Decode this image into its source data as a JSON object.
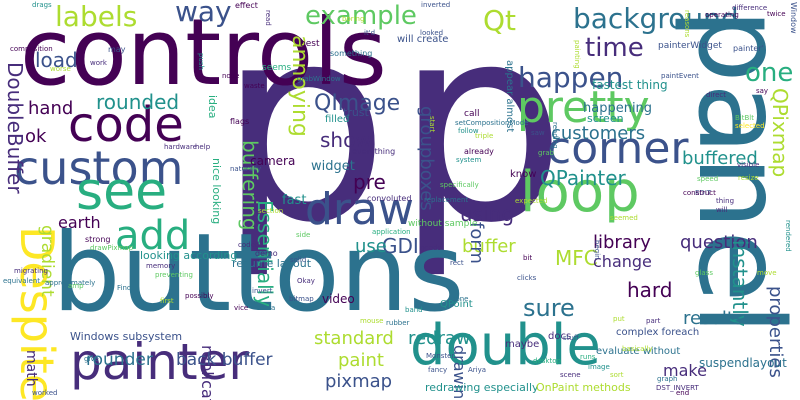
{
  "palette": {
    "c1": "#440154",
    "c2": "#472d7b",
    "c3": "#3b528b",
    "c4": "#2c728e",
    "c5": "#21918c",
    "c6": "#28ae80",
    "c7": "#5ec962",
    "c8": "#addc30",
    "c9": "#fde725"
  },
  "words": [
    {
      "text": "p",
      "color": "c2"
    },
    {
      "text": "p",
      "color": "c2"
    },
    {
      "text": "buttons",
      "color": "c4"
    },
    {
      "text": "controls",
      "color": "c1"
    },
    {
      "text": "panel",
      "color": "c4"
    },
    {
      "text": "painter",
      "color": "c2"
    },
    {
      "text": "double",
      "color": "c5"
    },
    {
      "text": "custom",
      "color": "c3"
    },
    {
      "text": "see",
      "color": "c6"
    },
    {
      "text": "code",
      "color": "c1"
    },
    {
      "text": "pretty",
      "color": "c7"
    },
    {
      "text": "corner",
      "color": "c3"
    },
    {
      "text": "loop",
      "color": "c7"
    },
    {
      "text": "draw",
      "color": "c3"
    },
    {
      "text": "add",
      "color": "c6"
    },
    {
      "text": "Despite",
      "color": "c9"
    },
    {
      "text": "background",
      "color": "c4"
    },
    {
      "text": "labels",
      "color": "c8"
    },
    {
      "text": "way",
      "color": "c3"
    },
    {
      "text": "example",
      "color": "c7"
    },
    {
      "text": "Qt",
      "color": "c8"
    },
    {
      "text": "time",
      "color": "c2"
    },
    {
      "text": "load",
      "color": "c3"
    },
    {
      "text": "happen",
      "color": "c3"
    },
    {
      "text": "one",
      "color": "c6"
    },
    {
      "text": "QImage",
      "color": "c3"
    },
    {
      "text": "annoying",
      "color": "c8"
    },
    {
      "text": "rounded",
      "color": "c5"
    },
    {
      "text": "DoubleBuffer",
      "color": "c2"
    },
    {
      "text": "hand",
      "color": "c1"
    },
    {
      "text": "ok",
      "color": "c1"
    },
    {
      "text": "pre",
      "color": "c1"
    },
    {
      "text": "show",
      "color": "c2"
    },
    {
      "text": "customers",
      "color": "c4"
    },
    {
      "text": "QPainter",
      "color": "c5"
    },
    {
      "text": "QPixmap",
      "color": "c8"
    },
    {
      "text": "buffered",
      "color": "c5"
    },
    {
      "text": "using",
      "color": "c2"
    },
    {
      "text": "buffering",
      "color": "c7"
    },
    {
      "text": "groupboxes",
      "color": "c3"
    },
    {
      "text": "earth",
      "color": "c1"
    },
    {
      "text": "gradient",
      "color": "c8"
    },
    {
      "text": "GDI",
      "color": "c3"
    },
    {
      "text": "use",
      "color": "c5"
    },
    {
      "text": "buffer",
      "color": "c8"
    },
    {
      "text": "library",
      "color": "c1"
    },
    {
      "text": "question",
      "color": "c2"
    },
    {
      "text": "form",
      "color": "c3"
    },
    {
      "text": "instantly",
      "color": "c5"
    },
    {
      "text": "MFC",
      "color": "c8"
    },
    {
      "text": "change",
      "color": "c2"
    },
    {
      "text": "hard",
      "color": "c1"
    },
    {
      "text": "sure",
      "color": "c4"
    },
    {
      "text": "results",
      "color": "c4"
    },
    {
      "text": "properties",
      "color": "c3"
    },
    {
      "text": "Essentially",
      "color": "c6"
    },
    {
      "text": "replicate",
      "color": "c2"
    },
    {
      "text": "standard",
      "color": "c8"
    },
    {
      "text": "redraw",
      "color": "c5"
    },
    {
      "text": "paint",
      "color": "c8"
    },
    {
      "text": "drawing",
      "color": "c3"
    },
    {
      "text": "math",
      "color": "c2"
    },
    {
      "text": "pixmap",
      "color": "c3"
    },
    {
      "text": "rounder",
      "color": "c4"
    },
    {
      "text": "back buffer",
      "color": "c3"
    },
    {
      "text": "make",
      "color": "c2"
    },
    {
      "text": "suspendlayout",
      "color": "c4"
    },
    {
      "text": "fastest thing",
      "color": "c5"
    },
    {
      "text": "happening",
      "color": "c4"
    },
    {
      "text": "widget",
      "color": "c4"
    },
    {
      "text": "camera",
      "color": "c1"
    },
    {
      "text": "fast",
      "color": "c5"
    },
    {
      "text": "video",
      "color": "c1"
    },
    {
      "text": "Windows subsystem",
      "color": "c3"
    },
    {
      "text": "looking according",
      "color": "c5"
    },
    {
      "text": "nice looking",
      "color": "c6"
    },
    {
      "text": "resume layout",
      "color": "c4"
    },
    {
      "text": "evaluate without",
      "color": "c4"
    },
    {
      "text": "redrawing especially",
      "color": "c5"
    },
    {
      "text": "OnPaint methods",
      "color": "c8"
    },
    {
      "text": "complex foreach",
      "color": "c3"
    },
    {
      "text": "QPoint",
      "color": "c5"
    },
    {
      "text": "screen",
      "color": "c5"
    },
    {
      "text": "trust",
      "color": "c3"
    },
    {
      "text": "filled",
      "color": "c5"
    },
    {
      "text": "idea",
      "color": "c6"
    },
    {
      "text": "appear almost",
      "color": "c4"
    },
    {
      "text": "will create",
      "color": "c3"
    },
    {
      "text": "know",
      "color": "c1"
    },
    {
      "text": "maybe",
      "color": "c2"
    },
    {
      "text": "docs",
      "color": "c2"
    },
    {
      "text": "painterWidget",
      "color": "c3"
    },
    {
      "text": "best",
      "color": "c1"
    },
    {
      "text": "seems",
      "color": "c6"
    },
    {
      "text": "something",
      "color": "c4"
    },
    {
      "text": "call",
      "color": "c1"
    },
    {
      "text": "flags",
      "color": "c1"
    },
    {
      "text": "everything",
      "color": "c2"
    },
    {
      "text": "already",
      "color": "c1"
    },
    {
      "text": "strong",
      "color": "c1"
    },
    {
      "text": "without sample",
      "color": "c7"
    },
    {
      "text": "convoluted",
      "color": "c2"
    },
    {
      "text": "demo",
      "color": "c2"
    },
    {
      "text": "solid",
      "color": "c3"
    },
    {
      "text": "invert",
      "color": "c3"
    },
    {
      "text": "Okay",
      "color": "c2"
    },
    {
      "text": "drawPixmap",
      "color": "c7"
    },
    {
      "text": "Window",
      "color": "c3"
    },
    {
      "text": "difference",
      "color": "c2"
    },
    {
      "text": "painter'",
      "color": "c3"
    },
    {
      "text": "say",
      "color": "c1"
    },
    {
      "text": "BitBlt",
      "color": "c7"
    },
    {
      "text": "direct",
      "color": "c2"
    },
    {
      "text": "operating",
      "color": "c1"
    },
    {
      "text": "twice",
      "color": "c1"
    },
    {
      "text": "effect",
      "color": "c1"
    },
    {
      "text": "drags",
      "color": "c5"
    },
    {
      "text": "inverted",
      "color": "c3"
    },
    {
      "text": "composition",
      "color": "c1"
    },
    {
      "text": "work",
      "color": "c2"
    },
    {
      "text": "worse",
      "color": "c8"
    },
    {
      "text": "may",
      "color": "c3"
    },
    {
      "text": "end",
      "color": "c1"
    },
    {
      "text": "graph",
      "color": "c4"
    },
    {
      "text": "runs",
      "color": "c6"
    },
    {
      "text": "Monster",
      "color": "c3"
    },
    {
      "text": "basically",
      "color": "c8"
    },
    {
      "text": "worked",
      "color": "c3"
    },
    {
      "text": "hardware",
      "color": "c2"
    },
    {
      "text": "help",
      "color": "c2"
    },
    {
      "text": "coded",
      "color": "c2"
    },
    {
      "text": "fancy",
      "color": "c3"
    },
    {
      "text": "Ariya",
      "color": "c3"
    },
    {
      "text": "begin",
      "color": "c3"
    },
    {
      "text": "thing",
      "color": "c2"
    },
    {
      "text": "will",
      "color": "c2"
    },
    {
      "text": "EDIT",
      "color": "c3"
    },
    {
      "text": "naturally",
      "color": "c3"
    },
    {
      "text": "section",
      "color": "c8"
    },
    {
      "text": "migrating",
      "color": "c2"
    },
    {
      "text": "equivalent",
      "color": "c4"
    },
    {
      "text": "give",
      "color": "c4"
    },
    {
      "text": "possibly",
      "color": "c1"
    },
    {
      "text": "memory",
      "color": "c2"
    },
    {
      "text": "bitmap",
      "color": "c3"
    },
    {
      "text": "done",
      "color": "c4"
    },
    {
      "text": "clicks",
      "color": "c3"
    },
    {
      "text": "expected",
      "color": "c8"
    },
    {
      "text": "system",
      "color": "c5"
    },
    {
      "text": "follow",
      "color": "c5"
    },
    {
      "text": "triple",
      "color": "c8"
    },
    {
      "text": "grab",
      "color": "c7"
    },
    {
      "text": "saw",
      "color": "c3"
    },
    {
      "text": "reading",
      "color": "c4"
    },
    {
      "text": "start",
      "color": "c8"
    },
    {
      "text": "painting",
      "color": "c8"
    },
    {
      "text": "setCompositionMode",
      "color": "c4"
    },
    {
      "text": "replacement",
      "color": "c4"
    },
    {
      "text": "grabWindow",
      "color": "c4"
    },
    {
      "text": "looked",
      "color": "c3"
    },
    {
      "text": "it'd",
      "color": "c3"
    },
    {
      "text": "boring",
      "color": "c8"
    },
    {
      "text": "read",
      "color": "c2"
    },
    {
      "text": "node",
      "color": "c1"
    },
    {
      "text": "waste",
      "color": "c1"
    },
    {
      "text": "push",
      "color": "c5"
    },
    {
      "text": "reasons",
      "color": "c8"
    },
    {
      "text": "preventing",
      "color": "c7"
    },
    {
      "text": "approximately",
      "color": "c4"
    },
    {
      "text": "side",
      "color": "c7"
    },
    {
      "text": "application",
      "color": "c6"
    },
    {
      "text": "rendered",
      "color": "c5"
    },
    {
      "text": "rect",
      "color": "c3"
    },
    {
      "text": "needs",
      "color": "c2"
    },
    {
      "text": "seemed",
      "color": "c8"
    },
    {
      "text": "specifically",
      "color": "c7"
    },
    {
      "text": "bit",
      "color": "c1"
    },
    {
      "text": "DST_INVERT",
      "color": "c2"
    },
    {
      "text": "speed",
      "color": "c7"
    },
    {
      "text": "amp",
      "color": "c7"
    },
    {
      "text": "Find",
      "color": "c4"
    },
    {
      "text": "mouse",
      "color": "c8"
    },
    {
      "text": "first",
      "color": "c8"
    },
    {
      "text": "vice",
      "color": "c1"
    },
    {
      "text": "versa",
      "color": "c4"
    },
    {
      "text": "rubber",
      "color": "c4"
    },
    {
      "text": "band",
      "color": "c5"
    },
    {
      "text": "put",
      "color": "c8"
    },
    {
      "text": "part",
      "color": "c2"
    },
    {
      "text": "construct",
      "color": "c1"
    },
    {
      "text": "paintEvent",
      "color": "c3"
    },
    {
      "text": "selected",
      "color": "c9"
    },
    {
      "text": "visible",
      "color": "c2"
    },
    {
      "text": "resize",
      "color": "c8"
    },
    {
      "text": "move",
      "color": "c8"
    },
    {
      "text": "glass",
      "color": "c7"
    },
    {
      "text": "stuff",
      "color": "c3"
    },
    {
      "text": "desktop",
      "color": "c6"
    },
    {
      "text": "image",
      "color": "c5"
    },
    {
      "text": "scene",
      "color": "c2"
    },
    {
      "text": "sort",
      "color": "c8"
    },
    {
      "text": "new",
      "color": "c6"
    },
    {
      "text": "gets",
      "color": "c4"
    },
    {
      "text": "quickly",
      "color": "c7"
    },
    {
      "text": "mine",
      "color": "c2"
    }
  ]
}
